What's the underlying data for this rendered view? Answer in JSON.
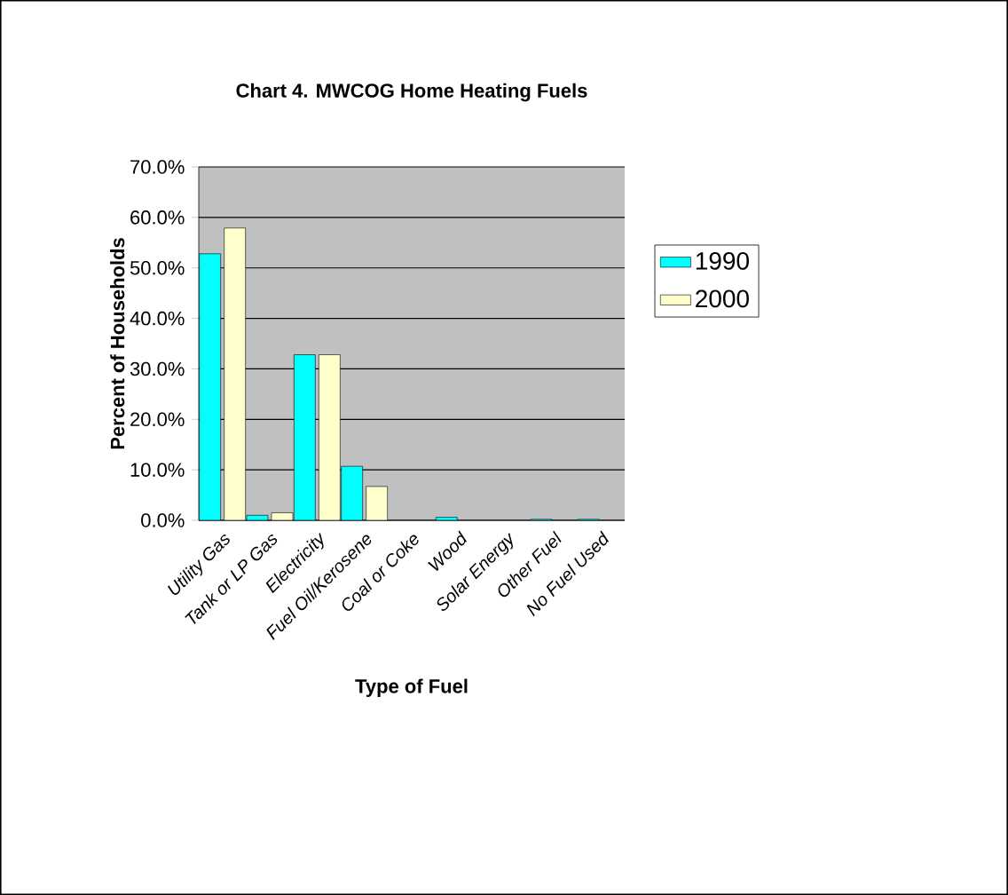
{
  "chart_data": {
    "type": "bar",
    "title": "Chart 4.  MWCOG Home Heating Fuels",
    "xlabel": "Type of Fuel",
    "ylabel": "Percent of Households",
    "categories": [
      "Utility Gas",
      "Tank or LP Gas",
      "Electricity",
      "Fuel Oil/Kerosene",
      "Coal or Coke",
      "Wood",
      "Solar Energy",
      "Other Fuel",
      "No Fuel Used"
    ],
    "series": [
      {
        "name": "1990",
        "color": "#00ffff",
        "values": [
          52.8,
          1.0,
          32.8,
          10.7,
          null,
          0.6,
          0.0,
          0.2,
          0.2
        ]
      },
      {
        "name": "2000",
        "color": "#ffffcc",
        "values": [
          57.9,
          1.5,
          32.8,
          6.7,
          0.0,
          null,
          0.0,
          null,
          null
        ]
      }
    ],
    "ylim": [
      0,
      70
    ],
    "yticks": [
      {
        "value": 0,
        "label": "0.0%"
      },
      {
        "value": 10,
        "label": "10.0%"
      },
      {
        "value": 20,
        "label": "20.0%"
      },
      {
        "value": 30,
        "label": "30.0%"
      },
      {
        "value": 40,
        "label": "40.0%"
      },
      {
        "value": 50,
        "label": "50.0%"
      },
      {
        "value": 60,
        "label": "60.0%"
      },
      {
        "value": 70,
        "label": "70.0%"
      }
    ],
    "grid": "y",
    "legend": "right"
  }
}
